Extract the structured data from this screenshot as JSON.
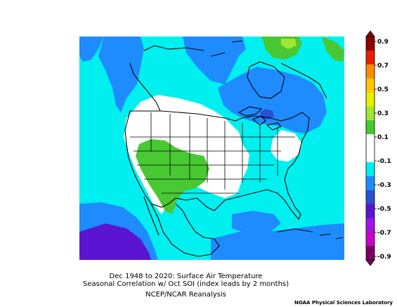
{
  "caption": {
    "line1": "Dec 1948 to 2020: Surface Air Temperature",
    "line2": "Seasonal Correlation w/ Oct SOI (index leads by 2 months)",
    "line3": "NCEP/NCAR Reanalysis"
  },
  "credit": "NOAA Physical Sciences Laboratory",
  "colorbar": {
    "labels": [
      "0.9",
      "0.7",
      "0.5",
      "0.3",
      "0.1",
      "-0.1",
      "-0.3",
      "-0.5",
      "-0.7",
      "-0.9"
    ],
    "colors": [
      "#8b0000",
      "#e62000",
      "#ff8c00",
      "#ffc800",
      "#e8f000",
      "#a0e632",
      "#48c832",
      "#ffffff",
      "#ffffff",
      "#00f0f0",
      "#1e8cff",
      "#2850d8",
      "#5a14d2",
      "#a014e6",
      "#c800c8",
      "#780064"
    ]
  },
  "map": {
    "colors": {
      "cyan": "#00f0f0",
      "lightblue": "#1e8cff",
      "blue": "#2850d8",
      "purple": "#5a14d2",
      "magenta": "#a014e6",
      "green": "#48c832",
      "lightgreen": "#a0e632",
      "white": "#ffffff"
    }
  }
}
